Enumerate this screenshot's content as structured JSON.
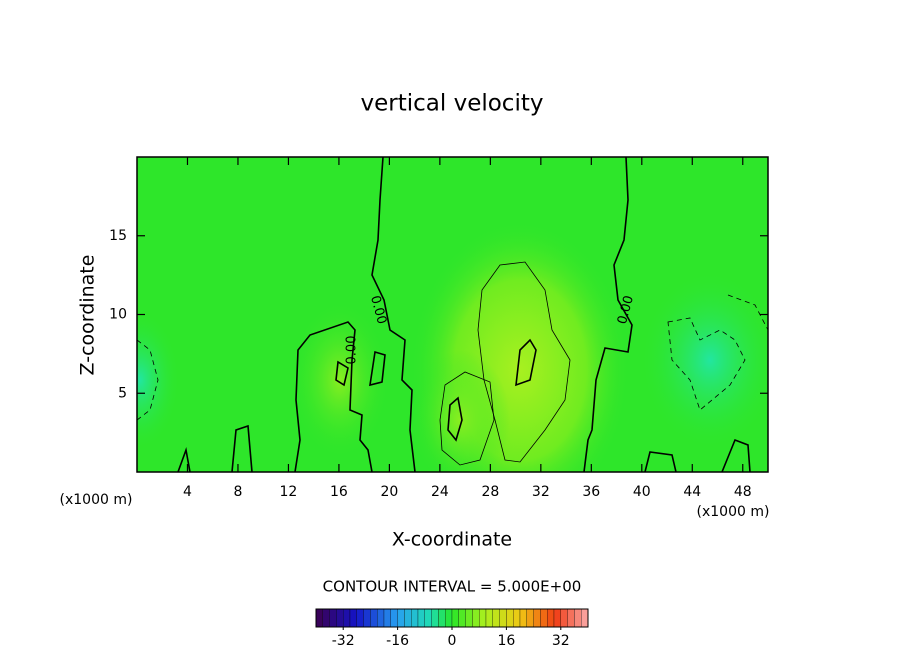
{
  "chart_data": {
    "type": "contour",
    "title": "vertical velocity",
    "x_label": "X-coordinate",
    "y_label": "Z-coordinate",
    "x_unit": "(x1000 m)",
    "xlim": [
      0,
      50
    ],
    "xticks": [
      4,
      8,
      12,
      16,
      20,
      24,
      28,
      32,
      36,
      40,
      44,
      48
    ],
    "ylim": [
      0,
      20
    ],
    "yticks": [
      5,
      10,
      15
    ],
    "contour_labels": [
      "0.00",
      "0.00",
      "0.00"
    ],
    "contour_interval": "CONTOUR INTERVAL = 5.000E+00",
    "colorbar": {
      "lim": [
        -40,
        40
      ],
      "ticks": [
        -32,
        -16,
        0,
        16,
        32
      ]
    }
  }
}
